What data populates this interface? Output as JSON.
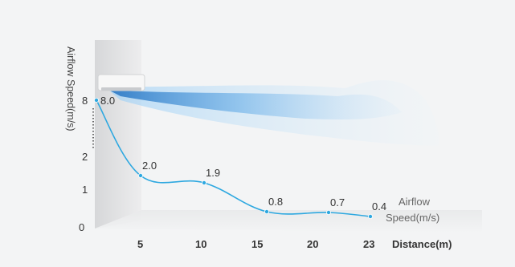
{
  "chart_data": {
    "type": "line",
    "title": "",
    "ylabel": "Airflow Speed(m/s)",
    "xlabel": "Distance(m)",
    "series_label": "Airflow\nSpeed(m/s)",
    "x_ticks": [
      "5",
      "10",
      "15",
      "20",
      "23"
    ],
    "y_ticks": [
      "0",
      "1",
      "2",
      "8"
    ],
    "points": [
      {
        "x": 0,
        "value": 8.0,
        "label": "8.0"
      },
      {
        "x": 5,
        "value": 2.0,
        "label": "2.0"
      },
      {
        "x": 10,
        "value": 1.9,
        "label": "1.9"
      },
      {
        "x": 15,
        "value": 0.8,
        "label": "0.8"
      },
      {
        "x": 20,
        "value": 0.7,
        "label": "0.7"
      },
      {
        "x": 23,
        "value": 0.4,
        "label": "0.4"
      }
    ],
    "line_color": "#2ea8e0",
    "airflow_color": "#6fb6ea"
  }
}
